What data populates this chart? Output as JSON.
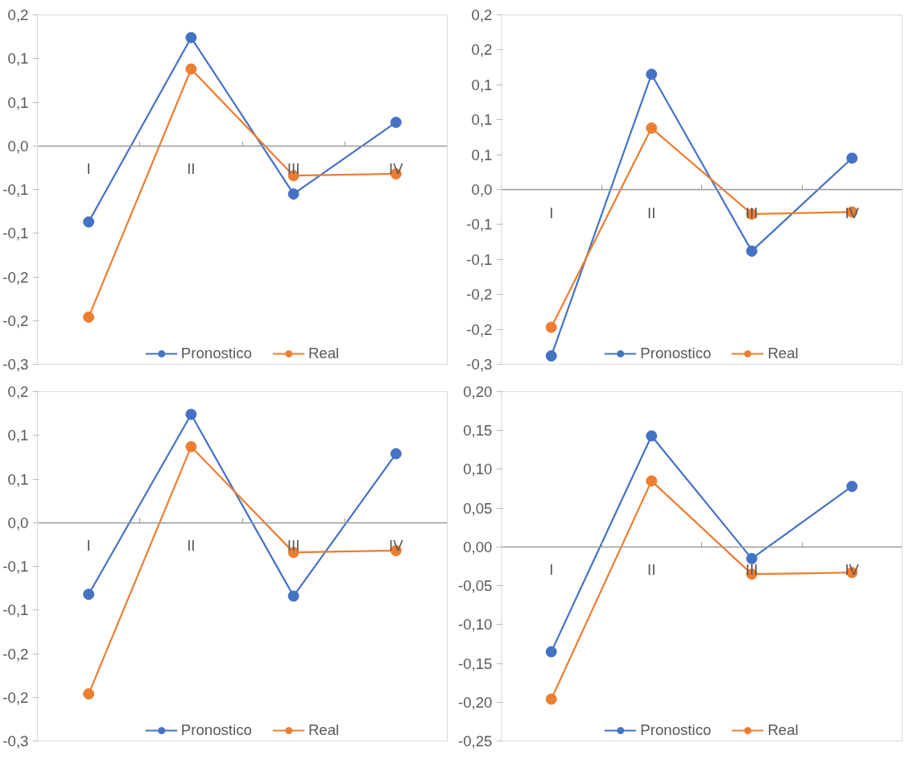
{
  "chart_data": [
    {
      "type": "line",
      "categories": [
        "I",
        "II",
        "III",
        "IV"
      ],
      "marker": "circle",
      "legend": "bottom",
      "grid": false,
      "ylim": [
        -0.25,
        0.15
      ],
      "yticks": [
        {
          "value": 0.15,
          "label": "0,2"
        },
        {
          "value": 0.1,
          "label": "0,1"
        },
        {
          "value": 0.05,
          "label": "0,1"
        },
        {
          "value": 0,
          "label": "0,0"
        },
        {
          "value": -0.05,
          "label": "-0,1"
        },
        {
          "value": -0.1,
          "label": "-0,1"
        },
        {
          "value": -0.15,
          "label": "-0,2"
        },
        {
          "value": -0.2,
          "label": "-0,2"
        },
        {
          "value": -0.25,
          "label": "-0,3"
        }
      ],
      "series": [
        {
          "name": "Pronostico",
          "color": "#4472c4",
          "values": [
            -0.087,
            0.124,
            -0.055,
            0.027
          ]
        },
        {
          "name": "Real",
          "color": "#ed7d31",
          "values": [
            -0.196,
            0.088,
            -0.034,
            -0.032
          ]
        }
      ]
    },
    {
      "type": "line",
      "categories": [
        "I",
        "II",
        "III",
        "IV"
      ],
      "marker": "circle",
      "legend": "bottom",
      "grid": false,
      "ylim": [
        -0.25,
        0.25
      ],
      "yticks": [
        {
          "value": 0.25,
          "label": "0,2"
        },
        {
          "value": 0.2,
          "label": "0,2"
        },
        {
          "value": 0.15,
          "label": "0,1"
        },
        {
          "value": 0.1,
          "label": "0,1"
        },
        {
          "value": 0.05,
          "label": "0,1"
        },
        {
          "value": 0,
          "label": "0,0"
        },
        {
          "value": -0.05,
          "label": "-0,1"
        },
        {
          "value": -0.1,
          "label": "-0,1"
        },
        {
          "value": -0.15,
          "label": "-0,2"
        },
        {
          "value": -0.2,
          "label": "-0,2"
        },
        {
          "value": -0.25,
          "label": "-0,3"
        }
      ],
      "series": [
        {
          "name": "Pronostico",
          "color": "#4472c4",
          "values": [
            -0.238,
            0.165,
            -0.088,
            0.045
          ]
        },
        {
          "name": "Real",
          "color": "#ed7d31",
          "values": [
            -0.197,
            0.088,
            -0.035,
            -0.032
          ]
        }
      ]
    },
    {
      "type": "line",
      "categories": [
        "I",
        "II",
        "III",
        "IV"
      ],
      "marker": "circle",
      "legend": "bottom",
      "grid": false,
      "ylim": [
        -0.25,
        0.15
      ],
      "yticks": [
        {
          "value": 0.15,
          "label": "0,2"
        },
        {
          "value": 0.1,
          "label": "0,1"
        },
        {
          "value": 0.05,
          "label": "0,1"
        },
        {
          "value": 0,
          "label": "0,0"
        },
        {
          "value": -0.05,
          "label": "-0,1"
        },
        {
          "value": -0.1,
          "label": "-0,1"
        },
        {
          "value": -0.15,
          "label": "-0,2"
        },
        {
          "value": -0.2,
          "label": "-0,2"
        },
        {
          "value": -0.25,
          "label": "-0,3"
        }
      ],
      "series": [
        {
          "name": "Pronostico",
          "color": "#4472c4",
          "values": [
            -0.082,
            0.124,
            -0.084,
            0.079
          ]
        },
        {
          "name": "Real",
          "color": "#ed7d31",
          "values": [
            -0.196,
            0.087,
            -0.034,
            -0.032
          ]
        }
      ]
    },
    {
      "type": "line",
      "categories": [
        "I",
        "II",
        "III",
        "IV"
      ],
      "marker": "circle",
      "legend": "bottom",
      "grid": false,
      "ylim": [
        -0.25,
        0.2
      ],
      "yticks": [
        {
          "value": 0.2,
          "label": "0,20"
        },
        {
          "value": 0.15,
          "label": "0,15"
        },
        {
          "value": 0.1,
          "label": "0,10"
        },
        {
          "value": 0.05,
          "label": "0,05"
        },
        {
          "value": 0,
          "label": "0,00"
        },
        {
          "value": -0.05,
          "label": "-0,05"
        },
        {
          "value": -0.1,
          "label": "-0,10"
        },
        {
          "value": -0.15,
          "label": "-0,15"
        },
        {
          "value": -0.2,
          "label": "-0,20"
        },
        {
          "value": -0.25,
          "label": "-0,25"
        }
      ],
      "series": [
        {
          "name": "Pronostico",
          "color": "#4472c4",
          "values": [
            -0.135,
            0.143,
            -0.015,
            0.078
          ]
        },
        {
          "name": "Real",
          "color": "#ed7d31",
          "values": [
            -0.196,
            0.085,
            -0.035,
            -0.033
          ]
        }
      ]
    }
  ]
}
